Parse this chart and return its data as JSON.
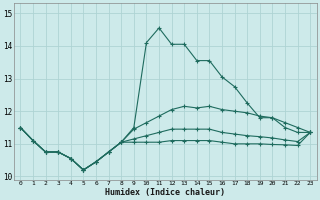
{
  "xlabel": "Humidex (Indice chaleur)",
  "bg_color": "#cdeaea",
  "grid_color": "#aed4d4",
  "line_color": "#1e6b5e",
  "x_values": [
    0,
    1,
    2,
    3,
    4,
    5,
    6,
    7,
    8,
    9,
    10,
    11,
    12,
    13,
    14,
    15,
    16,
    17,
    18,
    19,
    20,
    21,
    22,
    23
  ],
  "series": [
    [
      11.5,
      11.1,
      10.75,
      10.75,
      10.55,
      10.2,
      10.45,
      10.75,
      11.05,
      11.5,
      14.1,
      14.55,
      14.05,
      14.05,
      13.55,
      13.55,
      13.05,
      12.75,
      12.25,
      11.8,
      11.8,
      11.5,
      11.35,
      11.35
    ],
    [
      11.5,
      11.1,
      10.75,
      10.75,
      10.55,
      10.2,
      10.45,
      10.75,
      11.05,
      11.45,
      11.65,
      11.85,
      12.05,
      12.15,
      12.1,
      12.15,
      12.05,
      12.0,
      11.95,
      11.85,
      11.8,
      11.65,
      11.5,
      11.35
    ],
    [
      11.5,
      11.1,
      10.75,
      10.75,
      10.55,
      10.2,
      10.45,
      10.75,
      11.05,
      11.15,
      11.25,
      11.35,
      11.45,
      11.45,
      11.45,
      11.45,
      11.35,
      11.3,
      11.25,
      11.22,
      11.18,
      11.12,
      11.07,
      11.35
    ],
    [
      11.5,
      11.1,
      10.75,
      10.75,
      10.55,
      10.2,
      10.45,
      10.75,
      11.05,
      11.05,
      11.05,
      11.05,
      11.1,
      11.1,
      11.1,
      11.1,
      11.05,
      11.0,
      11.0,
      11.0,
      10.98,
      10.97,
      10.95,
      11.35
    ]
  ],
  "ylim": [
    9.9,
    15.3
  ],
  "yticks": [
    10,
    11,
    12,
    13,
    14,
    15
  ],
  "xlim": [
    -0.5,
    23.5
  ]
}
